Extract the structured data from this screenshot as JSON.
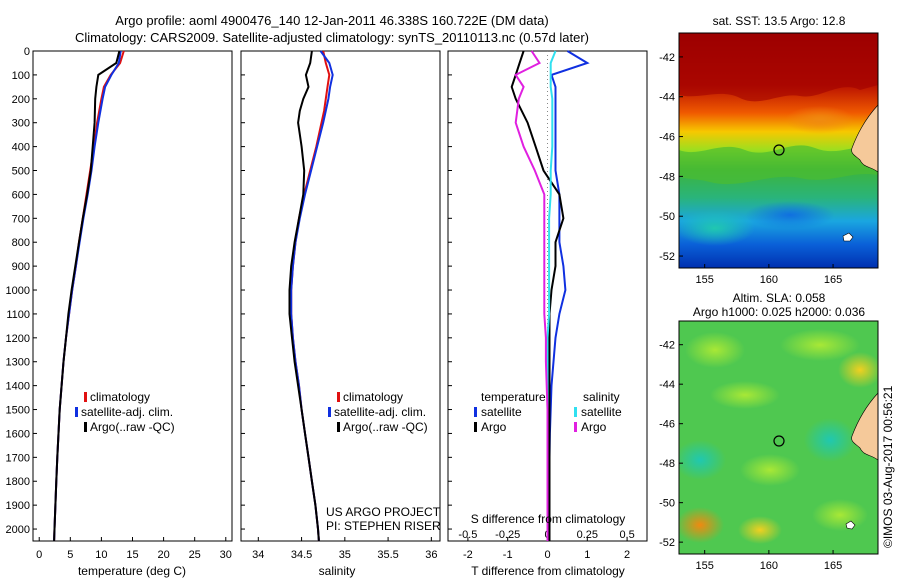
{
  "header": {
    "line1": "Argo profile: aoml 4900476_140 12-Jan-2011 46.338S 160.722E (DM data)",
    "line2": "Climatology: CARS2009. Satellite-adjusted climatology: synTS_20110113.nc (0.57d later)"
  },
  "colors": {
    "climatology": "#e01010",
    "satellite": "#1030e0",
    "argo": "#000000",
    "satellite_sal": "#30e0f0",
    "argo_sal": "#e020e0",
    "land": "#f5c99a"
  },
  "credits": {
    "project": "US ARGO PROJECT",
    "pi": "PI: STEPHEN RISER",
    "imos": "©IMOS 03-Aug-2017 00:56:21"
  },
  "legend_profile": {
    "climatology": "climatology",
    "satellite": "satellite-adj. clim.",
    "argo": "Argo(..raw -QC)"
  },
  "legend_diff": {
    "temp_head": "temperature",
    "sal_head": "salinity",
    "satellite": "satellite",
    "argo": "Argo"
  },
  "chart_data": [
    {
      "type": "line",
      "xlabel": "temperature (deg C)",
      "ylim": [
        0,
        2050
      ],
      "xlim": [
        -1,
        31
      ],
      "xticks": [
        "0",
        "5",
        "10",
        "15",
        "20",
        "25",
        "30"
      ],
      "yticks": [
        "0",
        "100",
        "200",
        "300",
        "400",
        "500",
        "600",
        "700",
        "800",
        "900",
        "1000",
        "1100",
        "1200",
        "1300",
        "1400",
        "1500",
        "1600",
        "1700",
        "1800",
        "1900",
        "2000"
      ],
      "grid": false,
      "legend": "center-right",
      "depth": [
        0,
        50,
        100,
        150,
        200,
        300,
        400,
        500,
        600,
        700,
        800,
        900,
        1000,
        1100,
        1200,
        1300,
        1400,
        1500,
        1600,
        1700,
        1800,
        1900,
        2000,
        2050
      ],
      "series": [
        {
          "name": "climatology",
          "values": [
            13.6,
            13.0,
            11.5,
            10.4,
            10.0,
            9.3,
            8.8,
            8.2,
            7.6,
            7.0,
            6.4,
            5.9,
            5.3,
            4.8,
            4.3,
            3.9,
            3.6,
            3.3,
            3.1,
            2.9,
            2.75,
            2.6,
            2.45,
            2.4
          ]
        },
        {
          "name": "satellite-adj. clim.",
          "values": [
            13.1,
            12.8,
            11.6,
            10.6,
            10.2,
            9.5,
            8.9,
            8.4,
            7.8,
            7.1,
            6.5,
            5.9,
            5.3,
            4.8,
            4.3,
            3.9,
            3.6,
            3.3,
            3.1,
            2.9,
            2.75,
            2.6,
            2.45,
            2.4
          ]
        },
        {
          "name": "Argo(..raw -QC)",
          "values": [
            12.9,
            12.4,
            9.5,
            9.2,
            9.0,
            8.9,
            8.6,
            8.3,
            7.7,
            7.0,
            6.4,
            5.8,
            5.2,
            4.7,
            4.3,
            3.9,
            3.6,
            3.3,
            3.1,
            2.9,
            2.75,
            2.6,
            2.45,
            2.4
          ]
        }
      ]
    },
    {
      "type": "line",
      "xlabel": "salinity",
      "ylim": [
        0,
        2050
      ],
      "xlim": [
        33.8,
        36.1
      ],
      "xticks": [
        "34",
        "34.5",
        "35",
        "35.5",
        "36"
      ],
      "yticks": [
        "0",
        "100",
        "200",
        "300",
        "400",
        "500",
        "600",
        "700",
        "800",
        "900",
        "1000",
        "1100",
        "1200",
        "1300",
        "1400",
        "1500",
        "1600",
        "1700",
        "1800",
        "1900",
        "2000"
      ],
      "grid": false,
      "legend": "center-right",
      "depth": [
        0,
        50,
        100,
        150,
        200,
        250,
        300,
        400,
        500,
        600,
        700,
        800,
        900,
        1000,
        1100,
        1200,
        1300,
        1400,
        1500,
        1600,
        1700,
        1800,
        1900,
        2000,
        2050
      ],
      "series": [
        {
          "name": "climatology",
          "values": [
            34.75,
            34.78,
            34.82,
            34.8,
            34.78,
            34.76,
            34.73,
            34.67,
            34.6,
            34.53,
            34.47,
            34.43,
            34.4,
            34.38,
            34.38,
            34.4,
            34.43,
            34.47,
            34.5,
            34.54,
            34.58,
            34.62,
            34.66,
            34.69,
            34.7
          ]
        },
        {
          "name": "satellite-adj. clim.",
          "values": [
            34.72,
            34.82,
            34.86,
            34.83,
            34.81,
            34.78,
            34.75,
            34.68,
            34.61,
            34.54,
            34.48,
            34.43,
            34.4,
            34.38,
            34.38,
            34.4,
            34.43,
            34.47,
            34.5,
            34.54,
            34.58,
            34.62,
            34.66,
            34.69,
            34.7
          ]
        },
        {
          "name": "Argo(..raw -QC)",
          "values": [
            34.62,
            34.6,
            34.55,
            34.58,
            34.52,
            34.48,
            34.46,
            34.5,
            34.53,
            34.52,
            34.47,
            34.42,
            34.38,
            34.36,
            34.36,
            34.39,
            34.42,
            34.46,
            34.5,
            34.54,
            34.58,
            34.62,
            34.66,
            34.69,
            34.7
          ]
        }
      ]
    },
    {
      "type": "line",
      "xlabel": "T difference from climatology",
      "xlabel_top": "S difference from climatology",
      "ylim": [
        0,
        2050
      ],
      "xlim": [
        -2.5,
        2.5
      ],
      "xticks": [
        "-2",
        "-1",
        "0",
        "1",
        "2"
      ],
      "xticks_top": [
        "-0.5",
        "-0.25",
        "0",
        "0.25",
        "0.5"
      ],
      "grid": false,
      "legend": "center",
      "depth": [
        0,
        50,
        100,
        150,
        200,
        300,
        400,
        500,
        600,
        700,
        800,
        900,
        1000,
        1100,
        1200,
        1300,
        1400,
        1500,
        1600,
        1700,
        1800,
        1900,
        2000,
        2050
      ],
      "series": [
        {
          "name": "temperature satellite",
          "values": [
            0.5,
            1.0,
            0.1,
            0.2,
            0.2,
            0.2,
            0.2,
            0.2,
            0.3,
            0.3,
            0.3,
            0.4,
            0.45,
            0.3,
            0.2,
            0.15,
            0.1,
            0.08,
            0.06,
            0.05,
            0.04,
            0.03,
            0.02,
            0.0
          ]
        },
        {
          "name": "temperature Argo",
          "values": [
            -0.6,
            -0.7,
            -0.8,
            -0.9,
            -0.8,
            -0.5,
            -0.3,
            -0.1,
            0.3,
            0.4,
            0.2,
            0.2,
            0.1,
            0.05,
            0.05,
            0.05,
            0.05,
            0.05,
            0.05,
            0.05,
            0.05,
            0.05,
            0.05,
            0.05
          ]
        },
        {
          "name": "salinity satellite",
          "values": [
            0.05,
            0.02,
            0.02,
            0.02,
            0.03,
            0.03,
            0.03,
            0.02,
            0.02,
            0.01,
            0.01,
            0.01,
            0.01,
            0.01,
            0.0,
            0.0,
            0.0,
            0.0,
            0.0,
            0.0,
            0.0,
            0.0,
            0.0,
            0.0
          ]
        },
        {
          "name": "salinity Argo",
          "values": [
            -0.1,
            -0.05,
            -0.2,
            -0.15,
            -0.18,
            -0.2,
            -0.15,
            -0.08,
            -0.02,
            -0.02,
            -0.02,
            -0.02,
            -0.02,
            -0.02,
            -0.01,
            -0.01,
            -0.005,
            0.0,
            0.0,
            0.0,
            0.0,
            0.0,
            0.0,
            0.0
          ]
        }
      ]
    },
    {
      "type": "heatmap",
      "title": "sat. SST: 13.5 Argo: 12.8",
      "xticks": [
        "155",
        "160",
        "165"
      ],
      "yticks": [
        "-42",
        "-44",
        "-46",
        "-48",
        "-50",
        "-52"
      ],
      "xlim": [
        153,
        168.5
      ],
      "ylim": [
        -52.6,
        -40.8
      ],
      "marker": {
        "lon": 160.722,
        "lat": -46.338
      }
    },
    {
      "type": "heatmap",
      "title": "Altim. SLA: 0.058",
      "subtitle": "Argo h1000: 0.025 h2000: 0.036",
      "xticks": [
        "155",
        "160",
        "165"
      ],
      "yticks": [
        "-42",
        "-44",
        "-46",
        "-48",
        "-50",
        "-52"
      ],
      "xlim": [
        153,
        168.5
      ],
      "ylim": [
        -52.6,
        -40.8
      ],
      "marker": {
        "lon": 160.722,
        "lat": -46.338
      }
    }
  ]
}
